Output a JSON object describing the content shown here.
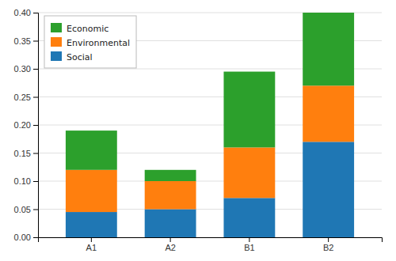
{
  "chart_data": {
    "type": "bar",
    "stacked": true,
    "categories": [
      "A1",
      "A2",
      "B1",
      "B2"
    ],
    "series": [
      {
        "name": "Social",
        "values": [
          0.045,
          0.05,
          0.07,
          0.17
        ]
      },
      {
        "name": "Environmental",
        "values": [
          0.075,
          0.05,
          0.09,
          0.1
        ]
      },
      {
        "name": "Economic",
        "values": [
          0.07,
          0.02,
          0.135,
          0.13
        ]
      }
    ],
    "ylim": [
      0.0,
      0.4
    ],
    "yticks": [
      {
        "value": 0.0,
        "label": "0.00"
      },
      0.05,
      {
        "value": 0.1,
        "label": "0.10"
      },
      0.15,
      {
        "value": 0.2,
        "label": "0.20"
      },
      0.25,
      {
        "value": 0.3,
        "label": "0.30"
      },
      0.35,
      {
        "value": 0.4,
        "label": "0.40"
      }
    ],
    "grid": true,
    "legend": "upper left"
  }
}
